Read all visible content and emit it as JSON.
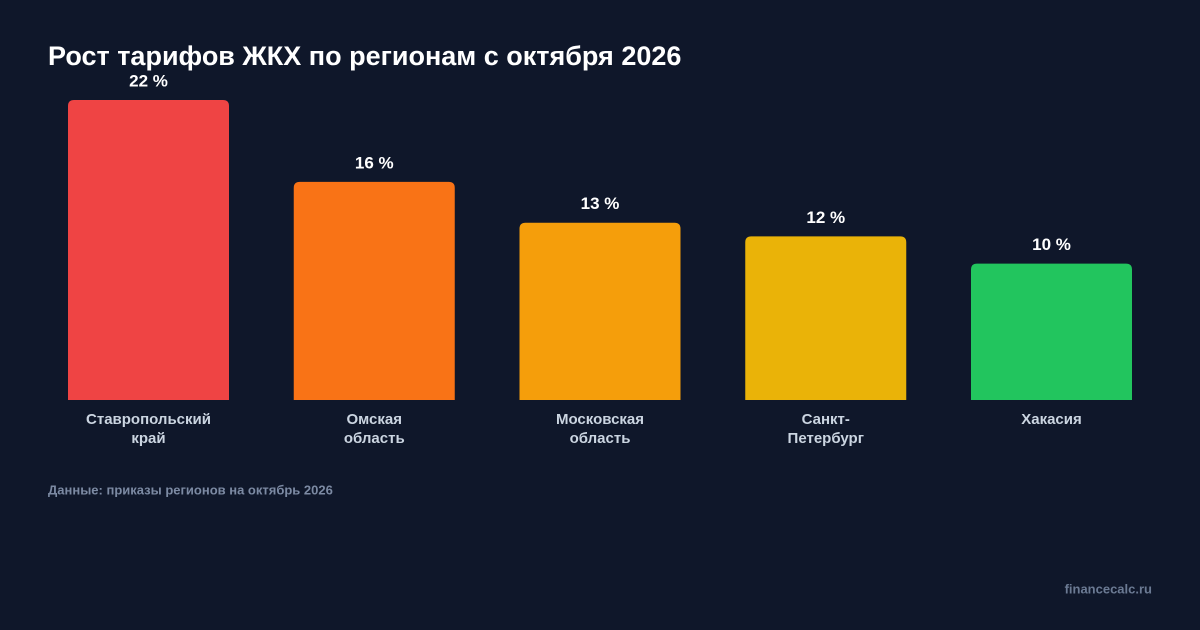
{
  "chart_data": {
    "type": "bar",
    "title": "Рост тарифов ЖКХ по регионам с октября 2026",
    "categories": [
      "Ставропольский\nкрай",
      "Омская\nобласть",
      "Московская\nобласть",
      "Санкт-\nПетербург",
      "Хакасия"
    ],
    "values": [
      22,
      16,
      13,
      12,
      10
    ],
    "value_labels": [
      "22 %",
      "16 %",
      "13 %",
      "12 %",
      "10 %"
    ],
    "colors": [
      "#ef4444",
      "#f97316",
      "#f59e0b",
      "#eab308",
      "#22c55e"
    ],
    "source": "Данные: приказы регионов на октябрь 2026",
    "watermark": "financecalc.ru"
  }
}
